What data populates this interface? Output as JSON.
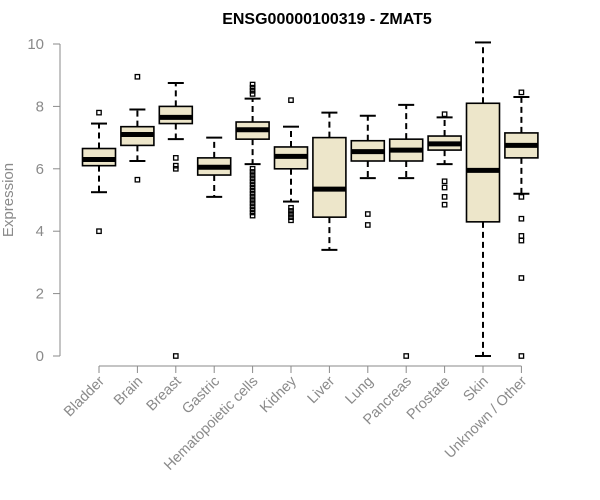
{
  "chart_data": {
    "type": "boxplot",
    "title": "ENSG00000100319 - ZMAT5",
    "xlabel": "",
    "ylabel": "Expression",
    "ylim": [
      0,
      10
    ],
    "yticks": [
      0,
      2,
      4,
      6,
      8,
      10
    ],
    "box_fill": "#ede6ca",
    "categories": [
      "Bladder",
      "Brain",
      "Breast",
      "Gastric",
      "Hematopoietic cells",
      "Kidney",
      "Liver",
      "Lung",
      "Pancreas",
      "Prostate",
      "Skin",
      "Unknown / Other"
    ],
    "boxes": [
      {
        "name": "Bladder",
        "whislo": 5.25,
        "q1": 6.1,
        "med": 6.3,
        "q3": 6.65,
        "whishi": 7.45,
        "fliers": [
          4.0,
          7.8
        ]
      },
      {
        "name": "Brain",
        "whislo": 6.25,
        "q1": 6.75,
        "med": 7.1,
        "q3": 7.35,
        "whishi": 7.9,
        "fliers": [
          5.65,
          8.95
        ]
      },
      {
        "name": "Breast",
        "whislo": 6.95,
        "q1": 7.45,
        "med": 7.65,
        "q3": 8.0,
        "whishi": 8.75,
        "fliers": [
          0.0,
          6.0,
          6.1,
          6.35
        ]
      },
      {
        "name": "Gastric",
        "whislo": 5.1,
        "q1": 5.8,
        "med": 6.05,
        "q3": 6.35,
        "whishi": 7.0,
        "fliers": []
      },
      {
        "name": "Hematopoietic cells",
        "whislo": 6.15,
        "q1": 6.95,
        "med": 7.25,
        "q3": 7.5,
        "whishi": 8.25,
        "fliers": [
          4.5,
          4.6,
          4.7,
          4.8,
          4.9,
          5.0,
          5.1,
          5.2,
          5.3,
          5.4,
          5.5,
          5.6,
          5.7,
          5.8,
          5.9,
          6.0,
          8.4,
          8.5,
          8.6,
          8.7
        ]
      },
      {
        "name": "Kidney",
        "whislo": 4.95,
        "q1": 6.0,
        "med": 6.4,
        "q3": 6.7,
        "whishi": 7.35,
        "fliers": [
          4.35,
          4.45,
          4.55,
          4.65,
          4.75,
          8.2
        ]
      },
      {
        "name": "Liver",
        "whislo": 3.4,
        "q1": 4.45,
        "med": 5.35,
        "q3": 7.0,
        "whishi": 7.8,
        "fliers": []
      },
      {
        "name": "Lung",
        "whislo": 5.7,
        "q1": 6.25,
        "med": 6.55,
        "q3": 6.9,
        "whishi": 7.7,
        "fliers": [
          4.2,
          4.55
        ]
      },
      {
        "name": "Pancreas",
        "whislo": 5.7,
        "q1": 6.25,
        "med": 6.6,
        "q3": 6.95,
        "whishi": 8.05,
        "fliers": [
          0.0
        ]
      },
      {
        "name": "Prostate",
        "whislo": 6.15,
        "q1": 6.6,
        "med": 6.8,
        "q3": 7.05,
        "whishi": 7.65,
        "fliers": [
          4.85,
          5.1,
          5.4,
          5.6,
          7.75
        ]
      },
      {
        "name": "Skin",
        "whislo": 0.0,
        "q1": 4.3,
        "med": 5.95,
        "q3": 8.1,
        "whishi": 10.05,
        "fliers": []
      },
      {
        "name": "Unknown / Other",
        "whislo": 5.2,
        "q1": 6.35,
        "med": 6.75,
        "q3": 7.15,
        "whishi": 8.3,
        "fliers": [
          0.0,
          2.5,
          3.7,
          3.85,
          4.4,
          5.1,
          8.45
        ]
      }
    ]
  }
}
